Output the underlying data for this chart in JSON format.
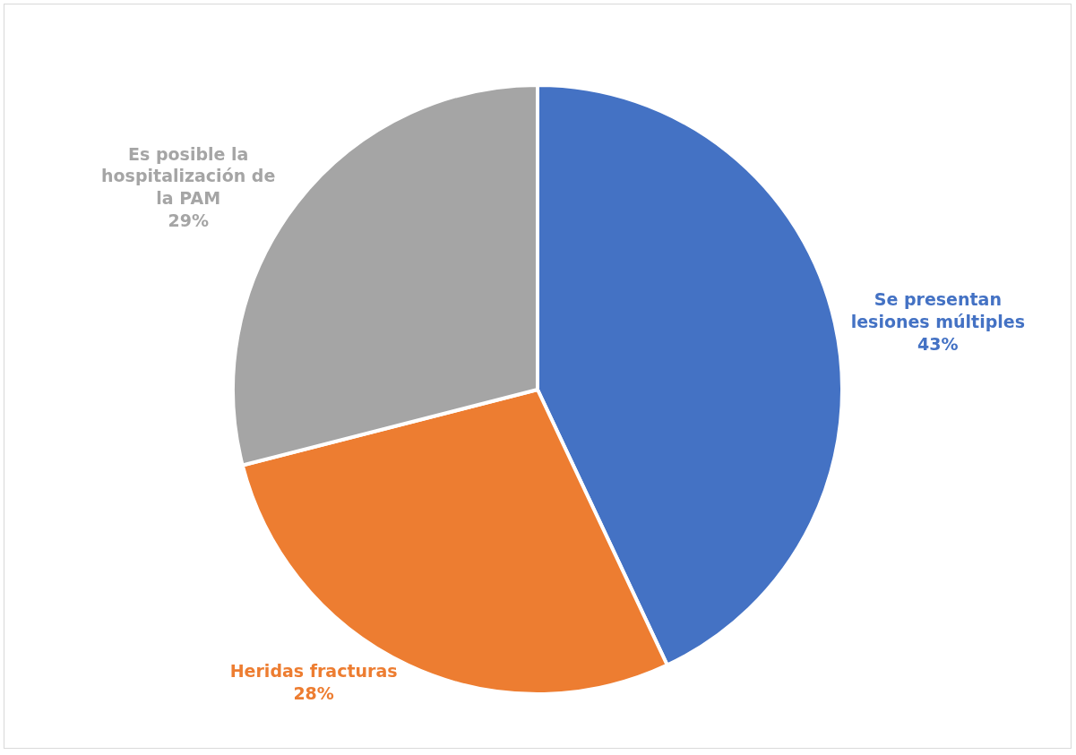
{
  "chart_data": {
    "type": "pie",
    "categories": [
      "Se presentan lesiones múltiples",
      "Heridas fracturas",
      "Es posible la hospitalización de la PAM"
    ],
    "values": [
      43,
      28,
      29
    ],
    "value_labels": [
      "43%",
      "28%",
      "29%"
    ],
    "colors": [
      "#4472c4",
      "#ed7d31",
      "#a5a5a5"
    ],
    "legend": false
  }
}
